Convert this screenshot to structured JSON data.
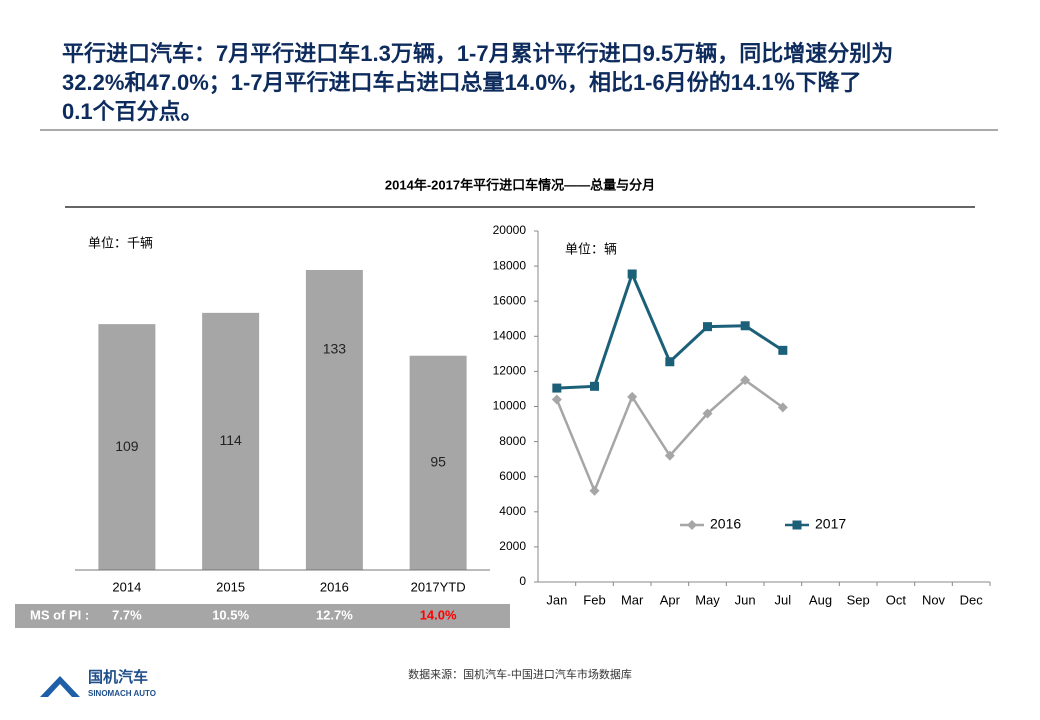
{
  "header": {
    "title_lines": [
      "平行进口汽车：7月平行进口车1.3万辆，1-7月累计平行进口9.5万辆，同比增速分别为",
      "32.2%和47.0%；1-7月平行进口车占进口总量14.0%，相比1-6月份的14.1％下降了",
      "0.1个百分点。"
    ]
  },
  "chart_title": "2014年-2017年平行进口车情况——总量与分月",
  "chart_data": [
    {
      "type": "bar",
      "unit_label": "单位：千辆",
      "categories": [
        "2014",
        "2015",
        "2016",
        "2017YTD"
      ],
      "values": [
        109,
        114,
        133,
        95
      ],
      "color": "#a6a6a6",
      "share_row": {
        "label": "MS of PI :",
        "values": [
          7.7,
          10.5,
          12.7,
          14.0
        ],
        "value_labels": [
          "7.7%",
          "10.5%",
          "12.7%",
          "14.0%"
        ],
        "highlight_color": "#ff0000"
      }
    },
    {
      "type": "line",
      "unit_label": "单位：辆",
      "categories": [
        "Jan",
        "Feb",
        "Mar",
        "Apr",
        "May",
        "Jun",
        "Jul",
        "Aug",
        "Sep",
        "Oct",
        "Nov",
        "Dec"
      ],
      "series": [
        {
          "name": "2016",
          "color": "#a6a6a6",
          "marker": "diamond",
          "values": [
            10400,
            5200,
            10550,
            7200,
            9600,
            11500,
            9950,
            null,
            null,
            null,
            null,
            null
          ]
        },
        {
          "name": "2017",
          "color": "#1b6078",
          "marker": "square",
          "values": [
            11050,
            11150,
            17550,
            12550,
            14550,
            14600,
            13200,
            null,
            null,
            null,
            null,
            null
          ]
        }
      ],
      "ylim": [
        0,
        20000
      ],
      "yticks": [
        0,
        2000,
        4000,
        6000,
        8000,
        10000,
        12000,
        14000,
        16000,
        18000,
        20000
      ],
      "grid": false
    }
  ],
  "source": "数据来源：国机汽车-中国进口汽车市场数据库",
  "logo": {
    "cn": "国机汽车",
    "en": "SINOMACH AUTO"
  }
}
